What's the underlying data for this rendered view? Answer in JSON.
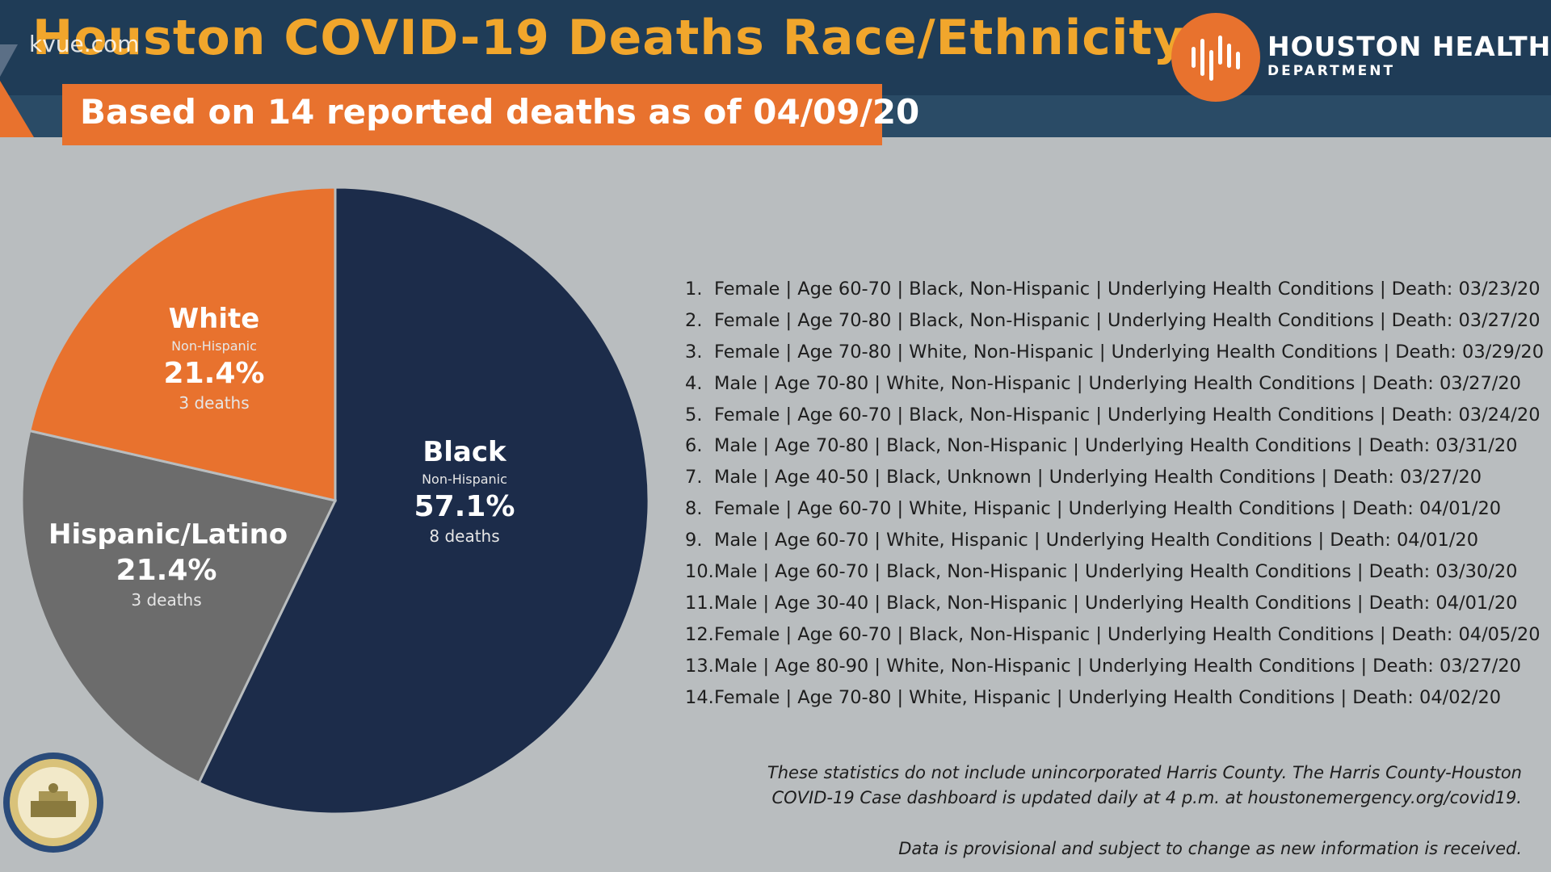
{
  "header": {
    "title": "Houston COVID-19 Deaths Race/Ethnicity",
    "watermark": "kvue.com",
    "subtitle": "Based on 14 reported deaths as of 04/09/20",
    "logo_name": "HOUSTON HEALTH",
    "logo_dept": "DEPARTMENT"
  },
  "colors": {
    "header_bg": "#1f3c57",
    "accent": "#e8722e",
    "title": "#f1a62c",
    "black_slice": "#1c2c4a",
    "white_slice": "#e8722e",
    "hispanic_slice": "#6c6c6c",
    "background": "#b9bdbf"
  },
  "chart_data": {
    "type": "pie",
    "title": "",
    "slices": [
      {
        "name": "Black",
        "sub": "Non-Hispanic",
        "value": 57.1,
        "label": "57.1%",
        "count": "8 deaths",
        "color": "#1c2c4a"
      },
      {
        "name": "Hispanic/Latino",
        "sub": "",
        "value": 21.4,
        "label": "21.4%",
        "count": "3 deaths",
        "color": "#6c6c6c"
      },
      {
        "name": "White",
        "sub": "Non-Hispanic",
        "value": 21.4,
        "label": "21.4%",
        "count": "3 deaths",
        "color": "#e8722e"
      }
    ]
  },
  "cases": [
    {
      "num": "1.",
      "text": "Female | Age 60-70 | Black, Non-Hispanic | Underlying Health Conditions | Death: 03/23/20"
    },
    {
      "num": "2.",
      "text": "Female | Age 70-80 | Black, Non-Hispanic | Underlying Health Conditions | Death: 03/27/20"
    },
    {
      "num": "3.",
      "text": "Female | Age 70-80 | White, Non-Hispanic | Underlying Health Conditions | Death: 03/29/20"
    },
    {
      "num": "4.",
      "text": "Male | Age 70-80 | White, Non-Hispanic | Underlying Health Conditions | Death: 03/27/20"
    },
    {
      "num": "5.",
      "text": "Female | Age 60-70 | Black, Non-Hispanic | Underlying Health Conditions | Death: 03/24/20"
    },
    {
      "num": "6.",
      "text": "Male | Age 70-80 | Black, Non-Hispanic | Underlying Health Conditions | Death: 03/31/20"
    },
    {
      "num": "7.",
      "text": "Male | Age 40-50 | Black, Unknown | Underlying Health Conditions | Death: 03/27/20"
    },
    {
      "num": "8.",
      "text": "Female | Age 60-70 | White, Hispanic | Underlying Health Conditions | Death: 04/01/20"
    },
    {
      "num": "9.",
      "text": "Male | Age 60-70 | White, Hispanic | Underlying Health Conditions | Death: 04/01/20"
    },
    {
      "num": "10.",
      "text": "Male | Age 60-70 | Black, Non-Hispanic | Underlying Health Conditions | Death: 03/30/20"
    },
    {
      "num": "11.",
      "text": "Male | Age 30-40 | Black, Non-Hispanic | Underlying Health Conditions | Death: 04/01/20"
    },
    {
      "num": "12.",
      "text": "Female | Age 60-70 | Black, Non-Hispanic | Underlying Health Conditions | Death: 04/05/20"
    },
    {
      "num": "13.",
      "text": "Male | Age 80-90 | White, Non-Hispanic | Underlying Health Conditions | Death: 03/27/20"
    },
    {
      "num": "14.",
      "text": "Female | Age 70-80 |  White, Hispanic | Underlying Health Conditions |  Death: 04/02/20"
    }
  ],
  "footnotes": {
    "line1": "These statistics do not include unincorporated Harris County. The Harris County-Houston",
    "line2": "COVID-19 Case dashboard is updated daily at 4 p.m. at houstonemergency.org/covid19.",
    "line3": "Data is provisional and subject to change as new information is received."
  },
  "seal": {
    "icon": "city-of-houston-seal-icon"
  }
}
